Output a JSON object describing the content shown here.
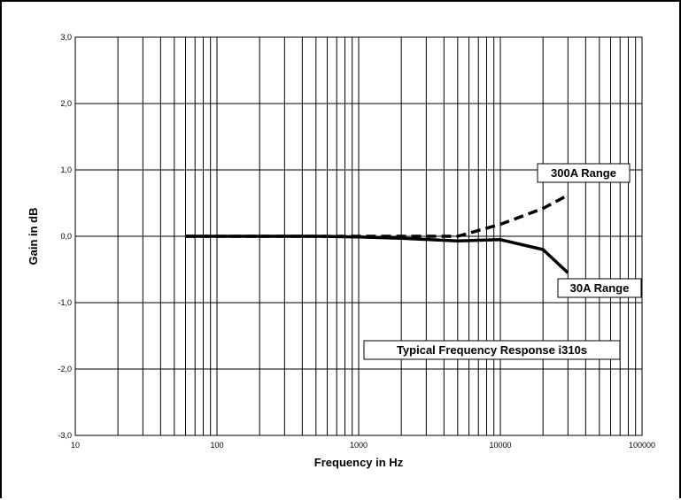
{
  "chart_data": {
    "type": "line",
    "xlabel": "Frequency in Hz",
    "ylabel": "Gain in dB",
    "x_scale": "log",
    "xlim": [
      10,
      100000
    ],
    "ylim": [
      -3.0,
      3.0
    ],
    "x_ticks": [
      {
        "value": 10,
        "label": "10"
      },
      {
        "value": 100,
        "label": "100"
      },
      {
        "value": 1000,
        "label": "1000"
      },
      {
        "value": 10000,
        "label": "10000"
      },
      {
        "value": 100000,
        "label": "100000"
      }
    ],
    "y_ticks": [
      {
        "value": 3,
        "label": "3,0"
      },
      {
        "value": 2,
        "label": "2,0"
      },
      {
        "value": 1,
        "label": "1,0"
      },
      {
        "value": 0,
        "label": "0,0"
      },
      {
        "value": -1,
        "label": "-1,0"
      },
      {
        "value": -2,
        "label": "-2,0"
      },
      {
        "value": -3,
        "label": "-3,0"
      }
    ],
    "grid": true,
    "series": [
      {
        "name": "300A Range",
        "style": "dashed",
        "color": "#000000",
        "x": [
          60,
          100,
          500,
          1000,
          2000,
          5000,
          10000,
          20000,
          30000
        ],
        "y": [
          0.0,
          0.0,
          0.0,
          0.0,
          0.0,
          0.0,
          0.18,
          0.42,
          0.62
        ]
      },
      {
        "name": "30A Range",
        "style": "solid",
        "color": "#000000",
        "x": [
          60,
          100,
          500,
          1000,
          2000,
          5000,
          10000,
          20000,
          30000
        ],
        "y": [
          0.0,
          0.0,
          0.0,
          -0.01,
          -0.03,
          -0.07,
          -0.05,
          -0.2,
          -0.55
        ]
      }
    ],
    "annotations": [
      {
        "text": "300A Range"
      },
      {
        "text": "30A Range"
      },
      {
        "text": "Typical Frequency Response i310s"
      }
    ]
  }
}
